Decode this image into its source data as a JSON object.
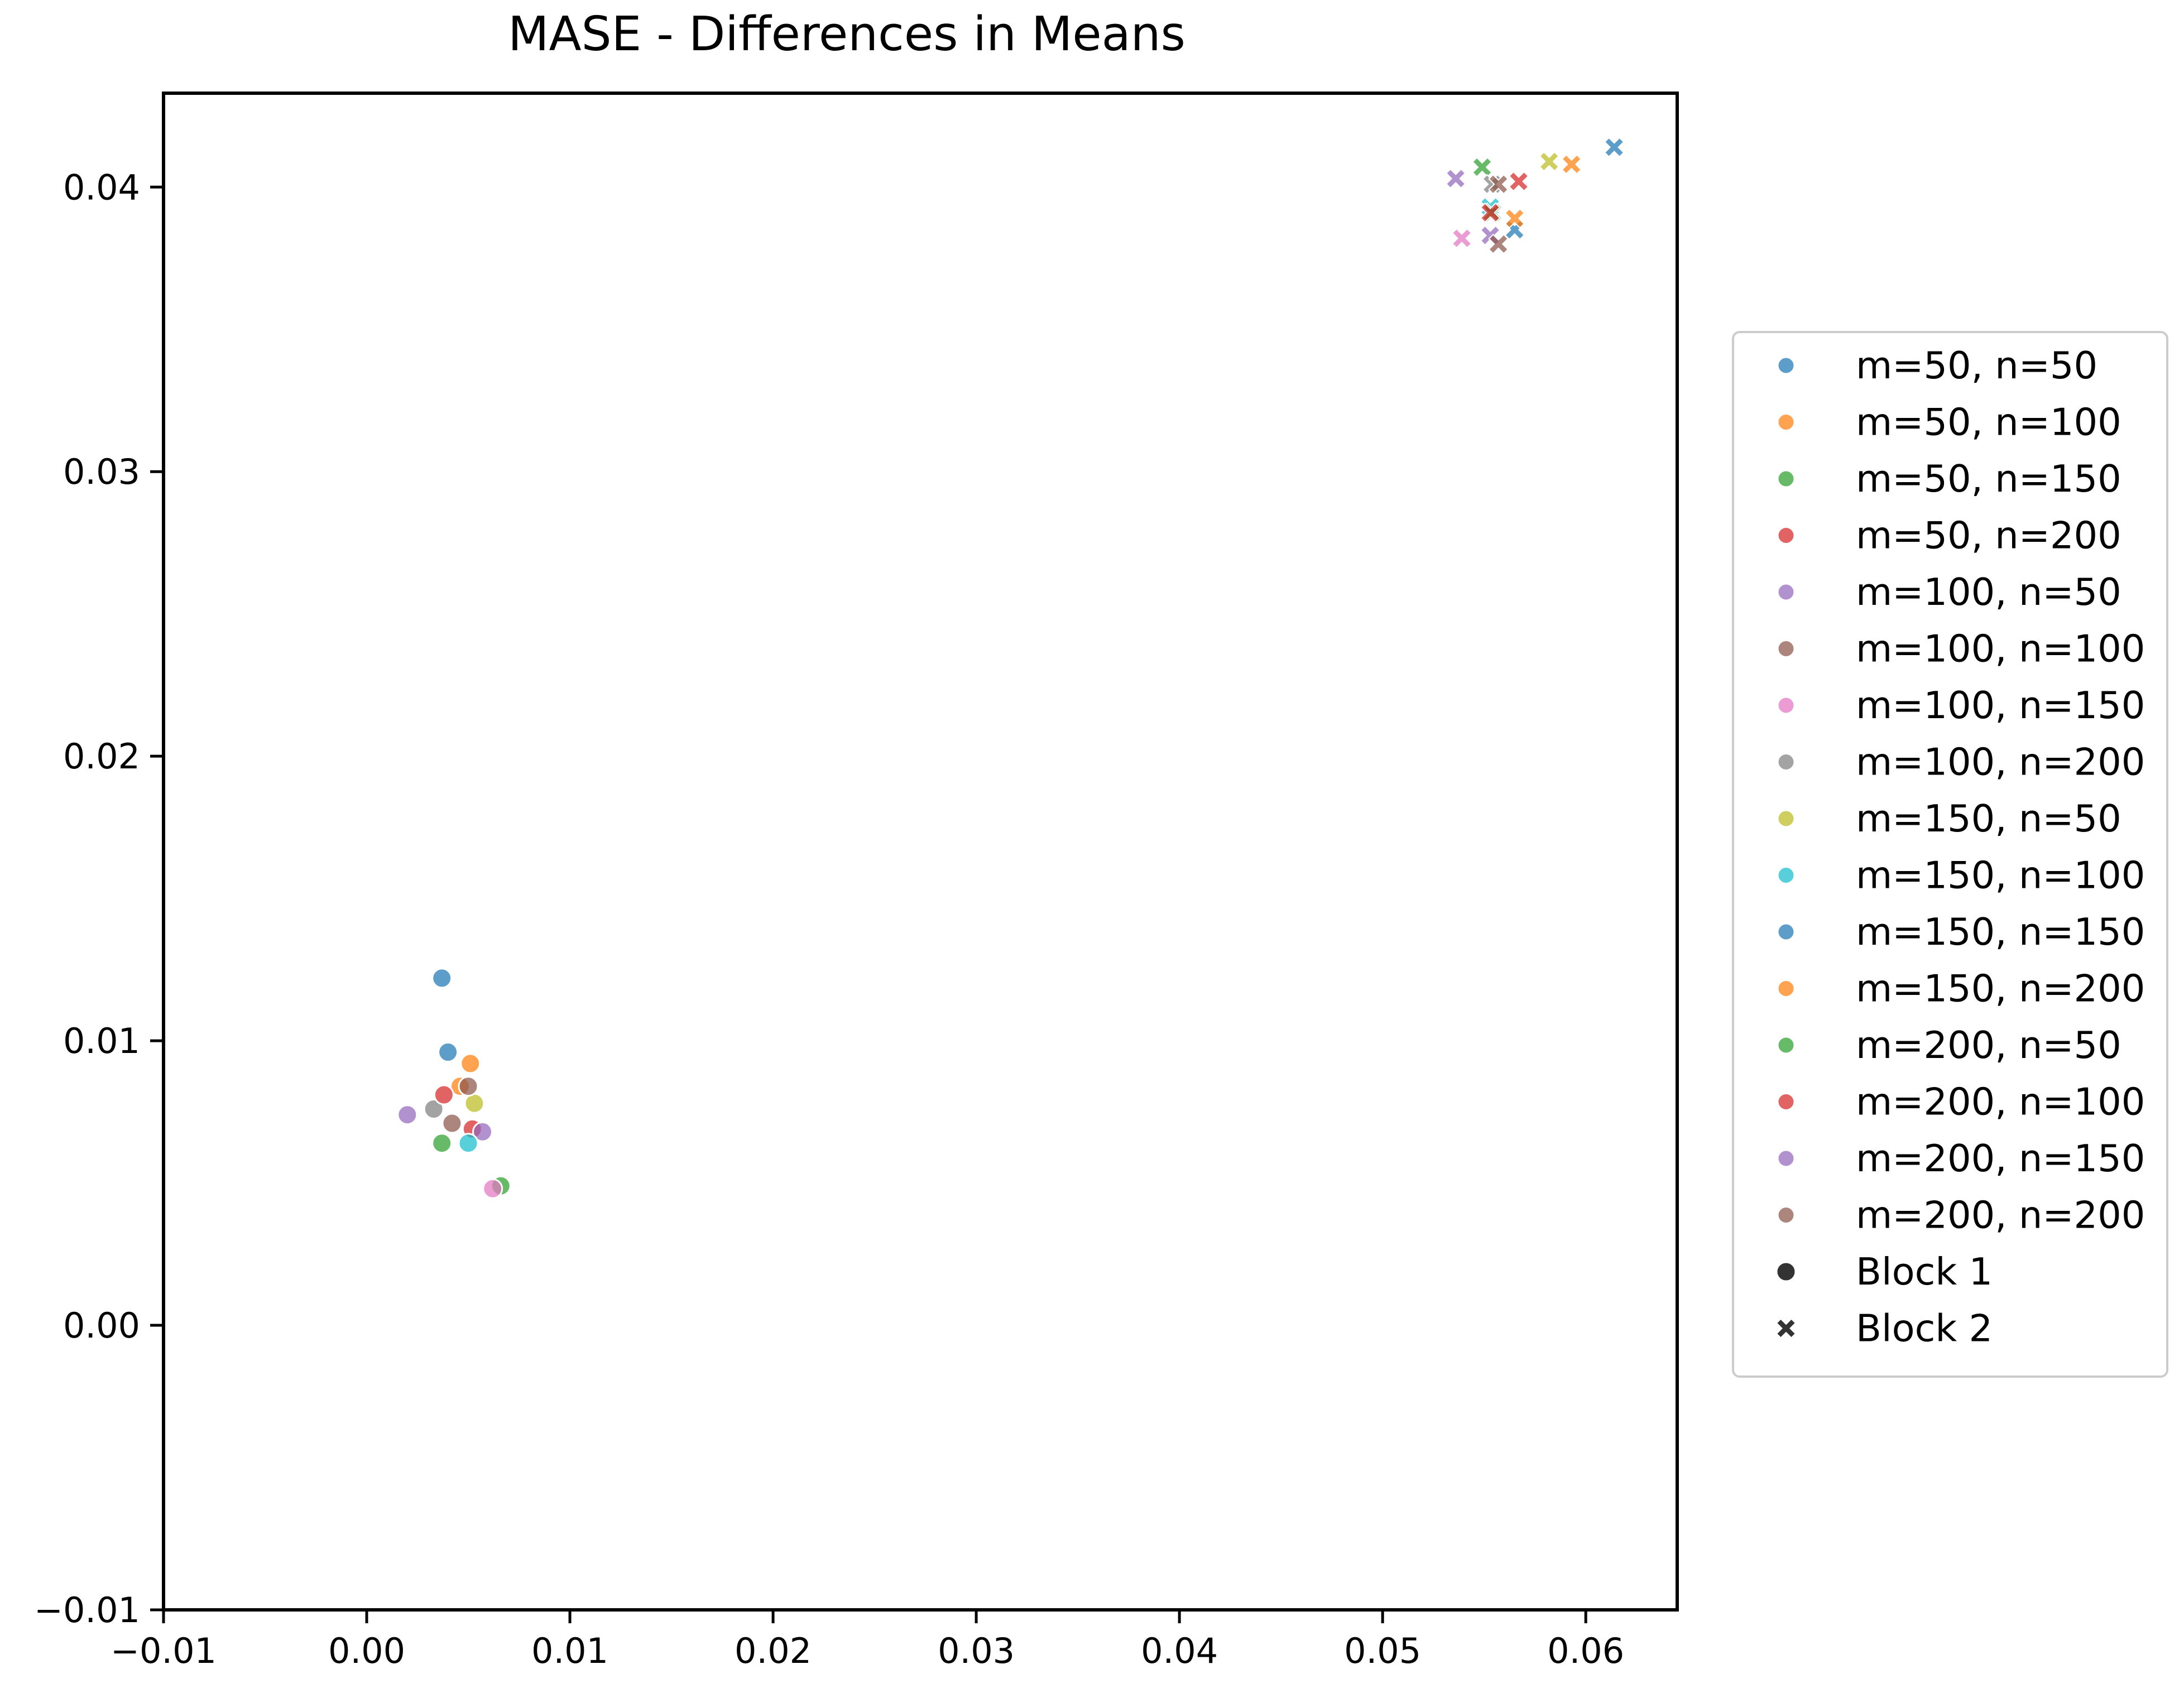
{
  "chart_data": {
    "type": "scatter",
    "title": "MASE - Differences in Means",
    "xlabel": "",
    "ylabel": "",
    "xlim": [
      -0.01,
      0.0645
    ],
    "ylim": [
      -0.01,
      0.0433
    ],
    "xticks": [
      -0.01,
      0.0,
      0.01,
      0.02,
      0.03,
      0.04,
      0.05,
      0.06
    ],
    "xtick_labels": [
      "−0.01",
      "0.00",
      "0.01",
      "0.02",
      "0.03",
      "0.04",
      "0.05",
      "0.06"
    ],
    "yticks": [
      -0.01,
      0.0,
      0.01,
      0.02,
      0.03,
      0.04
    ],
    "ytick_labels": [
      "−0.01",
      "0.00",
      "0.01",
      "0.02",
      "0.03",
      "0.04"
    ],
    "grid": false,
    "legend_position": "right, outside plot",
    "series": [
      {
        "name": "m=50, n=50",
        "color": "#1f77b4",
        "block1": [
          0.0037,
          0.0122
        ],
        "block2": [
          0.0565,
          0.0385
        ]
      },
      {
        "name": "m=50, n=100",
        "color": "#ff7f0e",
        "block1": [
          0.0051,
          0.0092
        ],
        "block2": [
          0.0565,
          0.0389
        ]
      },
      {
        "name": "m=50, n=150",
        "color": "#2ca02c",
        "block1": [
          0.0066,
          0.0049
        ],
        "block2": [
          0.0549,
          0.0407
        ]
      },
      {
        "name": "m=50, n=200",
        "color": "#d62728",
        "block1": [
          0.0052,
          0.0069
        ],
        "block2": [
          0.0567,
          0.0402
        ]
      },
      {
        "name": "m=100, n=50",
        "color": "#9467bd",
        "block1": [
          0.0057,
          0.0068
        ],
        "block2": [
          0.0553,
          0.0383
        ]
      },
      {
        "name": "m=100, n=100",
        "color": "#8c564b",
        "block1": [
          0.0042,
          0.0071
        ],
        "block2": [
          0.0557,
          0.038
        ]
      },
      {
        "name": "m=100, n=150",
        "color": "#e377c2",
        "block1": [
          0.0062,
          0.0048
        ],
        "block2": [
          0.0539,
          0.0382
        ]
      },
      {
        "name": "m=100, n=200",
        "color": "#7f7f7f",
        "block1": [
          0.0033,
          0.0076
        ],
        "block2": [
          0.0554,
          0.0401
        ]
      },
      {
        "name": "m=150, n=50",
        "color": "#bcbd22",
        "block1": [
          0.0053,
          0.0078
        ],
        "block2": [
          0.0582,
          0.0409
        ]
      },
      {
        "name": "m=150, n=100",
        "color": "#17becf",
        "block1": [
          0.005,
          0.0064
        ],
        "block2": [
          0.0553,
          0.0393
        ]
      },
      {
        "name": "m=150, n=150",
        "color": "#1f77b4",
        "block1": [
          0.004,
          0.0096
        ],
        "block2": [
          0.0614,
          0.0414
        ]
      },
      {
        "name": "m=150, n=200",
        "color": "#ff7f0e",
        "block1": [
          0.0046,
          0.0084
        ],
        "block2": [
          0.0593,
          0.0408
        ]
      },
      {
        "name": "m=200, n=50",
        "color": "#2ca02c",
        "block1": [
          0.0037,
          0.0064
        ],
        "block2": [
          0.0554,
          0.0391
        ]
      },
      {
        "name": "m=200, n=100",
        "color": "#d62728",
        "block1": [
          0.0038,
          0.0081
        ],
        "block2": [
          0.0553,
          0.0391
        ]
      },
      {
        "name": "m=200, n=150",
        "color": "#9467bd",
        "block1": [
          0.002,
          0.0074
        ],
        "block2": [
          0.0536,
          0.0403
        ]
      },
      {
        "name": "m=200, n=200",
        "color": "#8c564b",
        "block1": [
          0.005,
          0.0084
        ],
        "block2": [
          0.0557,
          0.0401
        ]
      }
    ],
    "marker_legend": [
      {
        "name": "Block 1",
        "marker": "circle"
      },
      {
        "name": "Block 2",
        "marker": "x"
      }
    ]
  }
}
